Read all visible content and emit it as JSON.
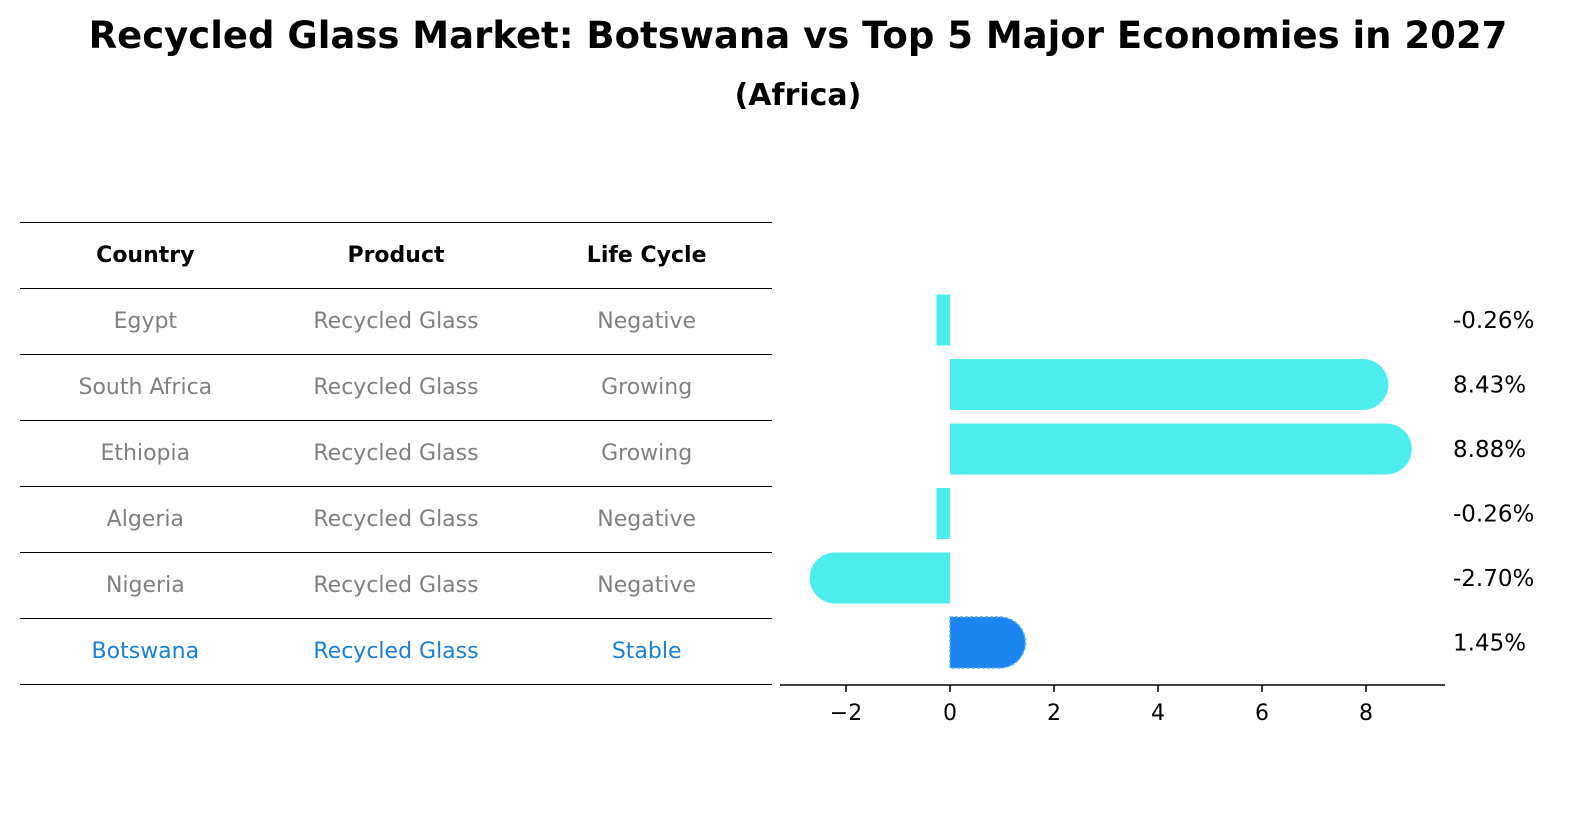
{
  "title": "Recycled Glass Market: Botswana vs Top 5 Major Economies in 2027",
  "subtitle": "(Africa)",
  "table": {
    "headers": [
      "Country",
      "Product",
      "Life Cycle"
    ],
    "rows": [
      {
        "country": "Egypt",
        "product": "Recycled Glass",
        "life_cycle": "Negative"
      },
      {
        "country": "South Africa",
        "product": "Recycled Glass",
        "life_cycle": "Growing"
      },
      {
        "country": "Ethiopia",
        "product": "Recycled Glass",
        "life_cycle": "Growing"
      },
      {
        "country": "Algeria",
        "product": "Recycled Glass",
        "life_cycle": "Negative"
      },
      {
        "country": "Nigeria",
        "product": "Recycled Glass",
        "life_cycle": "Negative"
      },
      {
        "country": "Botswana",
        "product": "Recycled Glass",
        "life_cycle": "Stable"
      }
    ]
  },
  "chart_data": {
    "type": "bar",
    "orientation": "horizontal",
    "categories": [
      "Egypt",
      "South Africa",
      "Ethiopia",
      "Algeria",
      "Nigeria",
      "Botswana"
    ],
    "values": [
      -0.26,
      8.43,
      8.88,
      -0.26,
      -2.7,
      1.45
    ],
    "value_labels": [
      "-0.26%",
      "8.43%",
      "8.88%",
      "-0.26%",
      "-2.70%",
      "1.45%"
    ],
    "highlight_category": "Botswana",
    "xlim": [
      -3.3,
      9.5
    ],
    "xticks": [
      -2,
      0,
      2,
      4,
      6,
      8
    ],
    "xtick_labels": [
      "−2",
      "0",
      "2",
      "4",
      "6",
      "8"
    ],
    "colors": {
      "default": "#4deded",
      "highlight": "#1a85f0"
    },
    "grid": false
  }
}
